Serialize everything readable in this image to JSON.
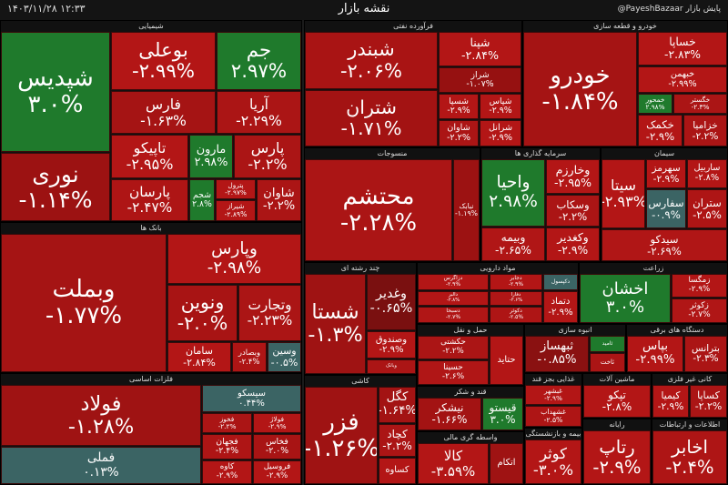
{
  "header": {
    "title": "نقشه بازار",
    "datetime": "۱۴۰۳/۱۱/۲۸   ۱۲:۳۳",
    "source": "@PayeshBazaar پایش بازار"
  },
  "sectors": [
    {
      "name": "شیمیایی",
      "tiles": [
        {
          "name": "شپدیس",
          "change": "۳.۰%",
          "color": "#1f7a2c"
        },
        {
          "name": "نوری",
          "change": "-۱.۱۴%",
          "color": "#9c1212"
        },
        {
          "name": "بوعلی",
          "change": "-۲.۹۹%",
          "color": "#b31616"
        },
        {
          "name": "جم",
          "change": "۲.۹۷%",
          "color": "#1f7a2c"
        },
        {
          "name": "فارس",
          "change": "-۱.۶۳%",
          "color": "#a51414"
        },
        {
          "name": "آریا",
          "change": "-۲.۲۹%",
          "color": "#ab1515"
        },
        {
          "name": "تاپیکو",
          "change": "-۲.۹۵%",
          "color": "#b31616"
        },
        {
          "name": "مارون",
          "change": "۲.۹۸%",
          "color": "#1f7a2c"
        },
        {
          "name": "پارس",
          "change": "-۲.۲%",
          "color": "#ab1515"
        },
        {
          "name": "پارسان",
          "change": "-۲.۴۷%",
          "color": "#ae1515"
        },
        {
          "name": "شجم",
          "change": "۲.۸%",
          "color": "#1f7a2c"
        },
        {
          "name": "پترول",
          "change": "-۲.۹۷%",
          "color": "#b31616"
        },
        {
          "name": "شیراز",
          "change": "-۲.۸۹%",
          "color": "#b31616"
        },
        {
          "name": "شاوان",
          "change": "-۲.۲%",
          "color": "#ab1515"
        }
      ]
    },
    {
      "name": "فرآورده نفتی",
      "tiles": [
        {
          "name": "شبندر",
          "change": "-۲.۰۶%",
          "color": "#a91414"
        },
        {
          "name": "شتران",
          "change": "-۱.۷۱%",
          "color": "#a31313"
        },
        {
          "name": "شپنا",
          "change": "-۲.۸۴%",
          "color": "#b31616"
        },
        {
          "name": "شراز",
          "change": "-۱.۰۷%",
          "color": "#961111"
        },
        {
          "name": "شسپا",
          "change": "-۲.۹%",
          "color": "#b31616"
        },
        {
          "name": "شپاس",
          "change": "-۲.۹%",
          "color": "#b31616"
        },
        {
          "name": "شاوان",
          "change": "-۲.۲%",
          "color": "#ab1515"
        },
        {
          "name": "شرانل",
          "change": "-۲.۹%",
          "color": "#b31616"
        }
      ]
    },
    {
      "name": "خودرو و قطعه سازی",
      "tiles": [
        {
          "name": "خودرو",
          "change": "-۱.۸۴%",
          "color": "#a51414"
        },
        {
          "name": "خساپا",
          "change": "-۲.۸۳%",
          "color": "#b31616"
        },
        {
          "name": "خبهمن",
          "change": "-۲.۹۹%",
          "color": "#b31616"
        },
        {
          "name": "خمحور",
          "change": "۲.۹۸%",
          "color": "#1f7a2c"
        },
        {
          "name": "خگستر",
          "change": "-۲.۳%",
          "color": "#ab1515"
        },
        {
          "name": "خکمک",
          "change": "-۲.۹%",
          "color": "#b31616"
        },
        {
          "name": "خزامیا",
          "change": "-۲.۲%",
          "color": "#ab1515"
        }
      ]
    },
    {
      "name": "منسوجات",
      "tiles": [
        {
          "name": "محتشم",
          "change": "-۲.۲۸%",
          "color": "#ab1515"
        },
        {
          "name": "نبابک",
          "change": "-۱.۱۹%",
          "color": "#9c1212"
        }
      ]
    },
    {
      "name": "سرمایه گذاری ها",
      "tiles": [
        {
          "name": "واحیا",
          "change": "۲.۹۸%",
          "color": "#1f7a2c"
        },
        {
          "name": "وبیمه",
          "change": "-۲.۶۵%",
          "color": "#b01616"
        },
        {
          "name": "وخارزم",
          "change": "-۲.۹۵%",
          "color": "#b31616"
        },
        {
          "name": "وسکاب",
          "change": "-۲.۲%",
          "color": "#ab1515"
        },
        {
          "name": "وکغدیر",
          "change": "-۲.۹%",
          "color": "#b31616"
        }
      ]
    },
    {
      "name": "سیمان",
      "tiles": [
        {
          "name": "سیتا",
          "change": "-۲.۹۳%",
          "color": "#b31616"
        },
        {
          "name": "سهرمز",
          "change": "-۲.۹%",
          "color": "#b31616"
        },
        {
          "name": "ساربیل",
          "change": "-۲.۸%",
          "color": "#b31616"
        },
        {
          "name": "سفارس",
          "change": "-۰.۹%",
          "color": "#3b6464"
        },
        {
          "name": "ستران",
          "change": "-۲.۵%",
          "color": "#ae1515"
        },
        {
          "name": "سیدکو",
          "change": "-۲.۶۹%",
          "color": "#b01616"
        }
      ]
    },
    {
      "name": "بانک ها",
      "tiles": [
        {
          "name": "وبملت",
          "change": "-۱.۷۷%",
          "color": "#a51414"
        },
        {
          "name": "وپارس",
          "change": "-۲.۹۸%",
          "color": "#b31616"
        },
        {
          "name": "ونوین",
          "change": "-۲.۰%",
          "color": "#a81414"
        },
        {
          "name": "وتجارت",
          "change": "-۲.۲۳%",
          "color": "#ab1515"
        },
        {
          "name": "سامان",
          "change": "-۲.۸۴%",
          "color": "#b31616"
        },
        {
          "name": "وبصادر",
          "change": "-۲.۴%",
          "color": "#ae1515"
        },
        {
          "name": "وسین",
          "change": "-۰.۵%",
          "color": "#3b6464"
        }
      ]
    },
    {
      "name": "فلزات اساسی",
      "tiles": [
        {
          "name": "فولاد",
          "change": "-۱.۲۸%",
          "color": "#9f1313"
        },
        {
          "name": "فملی",
          "change": "۰.۱۳%",
          "color": "#3b6464"
        },
        {
          "name": "سیسکو",
          "change": "۰.۴۴%",
          "color": "#3b6464"
        },
        {
          "name": "فخوز",
          "change": "-۲.۲%",
          "color": "#ab1515"
        },
        {
          "name": "فولاژ",
          "change": "-۲.۹%",
          "color": "#b31616"
        },
        {
          "name": "فجهان",
          "change": "-۲.۴%",
          "color": "#ae1515"
        },
        {
          "name": "فخاس",
          "change": "-۲.۰%",
          "color": "#a81414"
        },
        {
          "name": "کاوه",
          "change": "-۲.۹%",
          "color": "#b31616"
        },
        {
          "name": "فروسیل",
          "change": "-۲.۹%",
          "color": "#b31616"
        }
      ]
    },
    {
      "name": "چند رشته ای",
      "tiles": [
        {
          "name": "شستا",
          "change": "-۱.۳%",
          "color": "#9f1313"
        },
        {
          "name": "وغدیر",
          "change": "-۰.۶۵%",
          "color": "#7a1010"
        },
        {
          "name": "وصندوق",
          "change": "-۲.۹%",
          "color": "#b31616"
        },
        {
          "name": "وبانک",
          "color": "#ab1515"
        }
      ]
    },
    {
      "name": "مواد دارویی",
      "tiles": [
        {
          "name": "دزاگرس",
          "change": "-۲.۹%",
          "color": "#b31616"
        },
        {
          "name": "دالبر",
          "change": "-۲.۸%",
          "color": "#b31616"
        },
        {
          "name": "دسبحا",
          "change": "-۲.۷%",
          "color": "#b01616"
        },
        {
          "name": "دجابر",
          "change": "-۲.۹%",
          "color": "#b31616"
        },
        {
          "name": "دفارا",
          "change": "-۲.۶%",
          "color": "#b01616"
        },
        {
          "name": "دکوثر",
          "change": "-۲.۵%",
          "color": "#ae1515"
        },
        {
          "name": "دکپسول",
          "color": "#3b6464"
        },
        {
          "name": "دتماد",
          "change": "-۲.۹%",
          "color": "#b31616"
        }
      ]
    },
    {
      "name": "زراعت",
      "tiles": [
        {
          "name": "اخشان",
          "change": "۳.۰%",
          "color": "#1f7a2c"
        },
        {
          "name": "زمگسا",
          "change": "-۲.۹%",
          "color": "#b31616"
        },
        {
          "name": "زکوثر",
          "change": "-۲.۷%",
          "color": "#b01616"
        }
      ]
    },
    {
      "name": "حمل و نقل",
      "tiles": [
        {
          "name": "حکشتی",
          "change": "-۲.۲%",
          "color": "#ab1515"
        },
        {
          "name": "حسینا",
          "change": "-۲.۶%",
          "color": "#b01616"
        },
        {
          "name": "حتاید",
          "color": "#b31616"
        }
      ]
    },
    {
      "name": "انبوه سازی",
      "tiles": [
        {
          "name": "ثبهساز",
          "change": "-۰.۸۵%",
          "color": "#8a1111"
        },
        {
          "name": "ثامید",
          "color": "#1f7a2c"
        },
        {
          "name": "ثاخت",
          "color": "#ab1515"
        }
      ]
    },
    {
      "name": "دستگاه های برقی",
      "tiles": [
        {
          "name": "بپاس",
          "change": "-۲.۹۹%",
          "color": "#b31616"
        },
        {
          "name": "بترانس",
          "change": "-۲.۳%",
          "color": "#ab1515"
        }
      ]
    },
    {
      "name": "کاشی",
      "tiles": [
        {
          "name": "فزر",
          "change": "-۱.۲۶%",
          "color": "#9f1313"
        },
        {
          "name": "کگل",
          "change": "-۱.۶۴%",
          "color": "#a31313"
        },
        {
          "name": "کچاد",
          "change": "-۲.۲%",
          "color": "#ab1515"
        },
        {
          "name": "کساوه",
          "color": "#b31616"
        }
      ]
    },
    {
      "name": "قند و شکر",
      "tiles": [
        {
          "name": "نیشکر",
          "change": "-۱.۶۶%",
          "color": "#a31313"
        },
        {
          "name": "قیستو",
          "change": "۳.۰%",
          "color": "#1f7a2c"
        }
      ]
    },
    {
      "name": "واسطه گری مالی",
      "tiles": [
        {
          "name": "کالا",
          "change": "-۳.۵۹%",
          "color": "#b31616"
        },
        {
          "name": "اتکام",
          "color": "#9f1313"
        }
      ]
    },
    {
      "name": "غذایی بجز قند",
      "tiles": [
        {
          "name": "غبشهر",
          "change": "-۲.۹%",
          "color": "#b31616"
        },
        {
          "name": "غشهداب",
          "change": "-۲.۵%",
          "color": "#ae1515"
        }
      ]
    },
    {
      "name": "ماشین آلات",
      "tiles": [
        {
          "name": "تپکو",
          "change": "-۲.۸%",
          "color": "#b31616"
        }
      ]
    },
    {
      "name": "کانی غیر فلزی",
      "tiles": [
        {
          "name": "کیمیا",
          "change": "-۲.۹%",
          "color": "#b31616"
        },
        {
          "name": "کساپا",
          "change": "-۲.۲%",
          "color": "#ab1515"
        }
      ]
    },
    {
      "name": "بیمه و بازنشستگی",
      "tiles": [
        {
          "name": "کوثر",
          "change": "-۳.۰%",
          "color": "#b31616"
        }
      ]
    },
    {
      "name": "رایانه",
      "tiles": [
        {
          "name": "رتاپ",
          "change": "-۲.۹%",
          "color": "#b31616"
        }
      ]
    },
    {
      "name": "اطلاعات و ارتباطات",
      "tiles": [
        {
          "name": "اخابر",
          "change": "-۲.۴%",
          "color": "#ae1515"
        }
      ]
    }
  ]
}
